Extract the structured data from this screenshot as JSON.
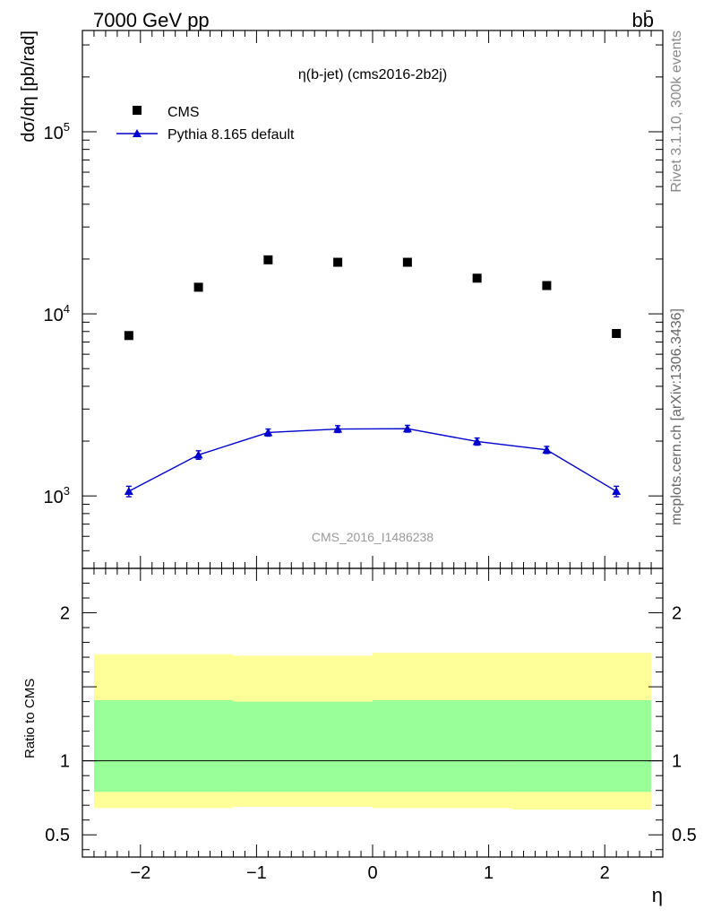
{
  "header": {
    "energy_label": "7000 GeV pp",
    "process_label": "bb̄"
  },
  "side_labels": {
    "rivet": "Rivet 3.1.10,  300k events",
    "mcplots": "mcplots.cern.ch [arXiv:1306.3436]"
  },
  "chart_data": {
    "type": "scatter",
    "title": "η(b-jet) (cms2016-2b2j)",
    "watermark": "CMS_2016_I1486238",
    "xlabel": "η",
    "ylabel": "dσ/dη [pb/rad]",
    "xlim": [
      -2.5,
      2.5
    ],
    "yscale": "log",
    "ylim": [
      400,
      360000
    ],
    "x_ticks": [
      -2,
      -1,
      0,
      1,
      2
    ],
    "x_tick_labels": [
      "−2",
      "−1",
      "0",
      "1",
      "2"
    ],
    "y_ticks": [
      1000,
      10000,
      100000
    ],
    "y_tick_labels": [
      {
        "base": "10",
        "exp": "3"
      },
      {
        "base": "10",
        "exp": "4"
      },
      {
        "base": "10",
        "exp": "5"
      }
    ],
    "legend": [
      {
        "label": "CMS",
        "marker": "square",
        "color": "#000000"
      },
      {
        "label": "Pythia 8.165 default",
        "marker": "triangle",
        "color": "#0000cc"
      }
    ],
    "series": [
      {
        "name": "CMS",
        "x": [
          -2.1,
          -1.5,
          -0.9,
          -0.3,
          0.3,
          0.9,
          1.5,
          2.1
        ],
        "y": [
          7600,
          14000,
          19800,
          19200,
          19200,
          15700,
          14300,
          7800
        ]
      },
      {
        "name": "Pythia 8.165 default",
        "x": [
          -2.1,
          -1.5,
          -0.9,
          -0.3,
          0.3,
          0.9,
          1.5,
          2.1
        ],
        "y": [
          1060,
          1680,
          2230,
          2330,
          2340,
          1990,
          1790,
          1060
        ],
        "yerr": [
          70,
          90,
          100,
          100,
          100,
          90,
          80,
          70
        ]
      }
    ],
    "ratio_panel": {
      "ylabel": "Ratio to CMS",
      "ylim": [
        0.35,
        2.3
      ],
      "y_ticks": [
        0.5,
        1,
        2
      ],
      "y_tick_labels": [
        "0.5",
        "1",
        "2"
      ],
      "bands": [
        {
          "x_range": [
            -2.4,
            -1.2
          ],
          "outer": [
            0.68,
            1.72
          ],
          "inner": [
            0.79,
            1.41
          ]
        },
        {
          "x_range": [
            -1.2,
            0.0
          ],
          "outer": [
            0.69,
            1.71
          ],
          "inner": [
            0.79,
            1.4
          ]
        },
        {
          "x_range": [
            0.0,
            1.2
          ],
          "outer": [
            0.68,
            1.73
          ],
          "inner": [
            0.79,
            1.41
          ]
        },
        {
          "x_range": [
            1.2,
            2.4
          ],
          "outer": [
            0.67,
            1.73
          ],
          "inner": [
            0.79,
            1.41
          ]
        }
      ],
      "band_colors": {
        "outer": "#ffff99",
        "inner": "#99ff99"
      }
    }
  }
}
